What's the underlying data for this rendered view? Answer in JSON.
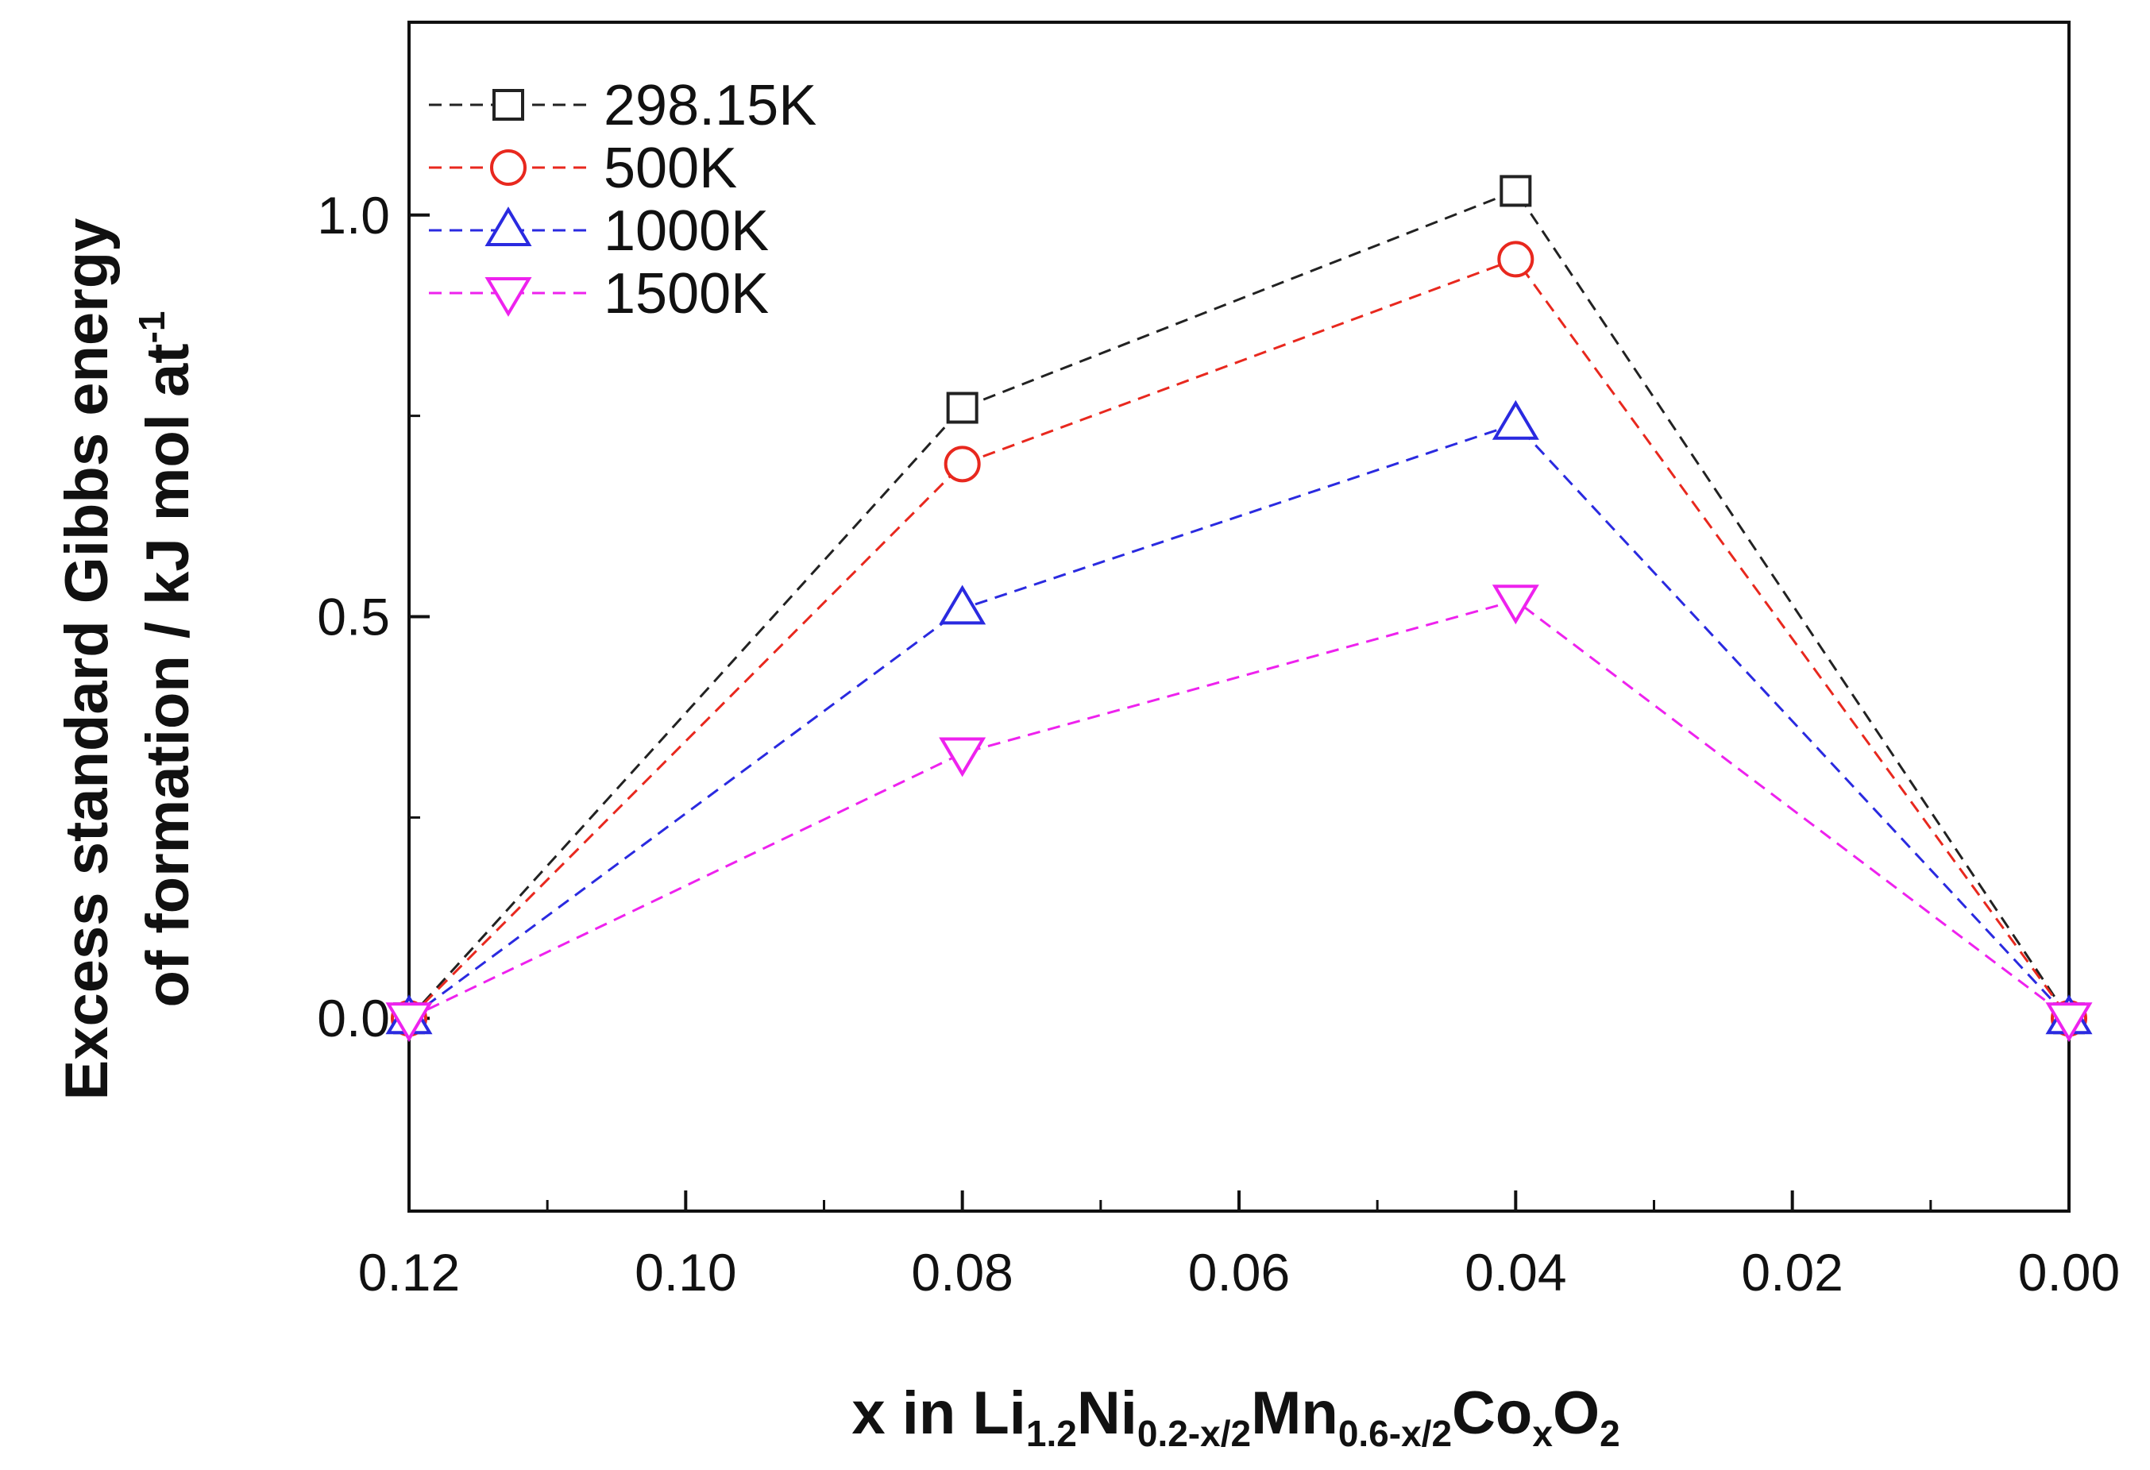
{
  "chart_data": {
    "type": "line",
    "title": "",
    "x": [
      0.12,
      0.08,
      0.04,
      0.0
    ],
    "xlim": [
      0.12,
      0.0
    ],
    "ylim": [
      -0.24,
      1.24
    ],
    "x_reversed": true,
    "x_ticks": [
      "0.12",
      "0.10",
      "0.08",
      "0.06",
      "0.04",
      "0.02",
      "0.00"
    ],
    "x_tick_values": [
      0.12,
      0.1,
      0.08,
      0.06,
      0.04,
      0.02,
      0.0
    ],
    "y_ticks": [
      "0.0",
      "0.5",
      "1.0"
    ],
    "y_tick_values": [
      0.0,
      0.5,
      1.0
    ],
    "xlabel": {
      "prefix": "x in Li",
      "sub1": "1.2",
      "t2": "Ni",
      "sub2": "0.2-x/2",
      "t3": "Mn",
      "sub3": "0.6-x/2",
      "t4": "Co",
      "sub4": "x",
      "t5": "O",
      "sub5": "2"
    },
    "ylabel": {
      "line1": "Excess standard Gibbs energy",
      "line2": "of formation / kJ mol at",
      "sup": "-1"
    },
    "legend_position": "top-left",
    "grid": false,
    "series": [
      {
        "name": "298.15K",
        "values": [
          0.0,
          0.76,
          1.03,
          0.0
        ],
        "color": "#222222",
        "marker": "square"
      },
      {
        "name": "500K",
        "values": [
          0.0,
          0.69,
          0.945,
          0.0
        ],
        "color": "#e8281e",
        "marker": "circle"
      },
      {
        "name": "1000K",
        "values": [
          0.0,
          0.51,
          0.74,
          0.0
        ],
        "color": "#2a2ae0",
        "marker": "triangle-up"
      },
      {
        "name": "1500K",
        "values": [
          0.0,
          0.33,
          0.52,
          0.0
        ],
        "color": "#ee22ee",
        "marker": "triangle-down"
      }
    ]
  }
}
